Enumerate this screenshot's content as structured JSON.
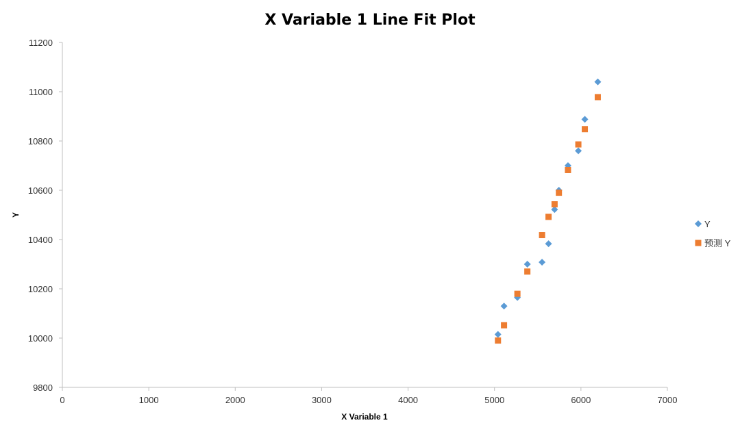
{
  "chart_data": {
    "type": "scatter",
    "title": "X Variable 1 Line Fit  Plot",
    "xlabel": "X Variable 1",
    "ylabel": "Y",
    "xlim": [
      0,
      7000
    ],
    "ylim": [
      9800,
      11200
    ],
    "xticks": [
      0,
      1000,
      2000,
      3000,
      4000,
      5000,
      6000,
      7000
    ],
    "yticks": [
      9800,
      10000,
      10200,
      10400,
      10600,
      10800,
      11000,
      11200
    ],
    "grid": false,
    "legend_position": "right",
    "series": [
      {
        "name": "Y",
        "marker": "diamond",
        "color": "#5B9BD5",
        "points": [
          [
            5040,
            10015
          ],
          [
            5110,
            10130
          ],
          [
            5265,
            10165
          ],
          [
            5380,
            10300
          ],
          [
            5550,
            10308
          ],
          [
            5625,
            10383
          ],
          [
            5695,
            10522
          ],
          [
            5745,
            10600
          ],
          [
            5850,
            10700
          ],
          [
            5970,
            10760
          ],
          [
            6045,
            10888
          ],
          [
            6195,
            11040
          ]
        ]
      },
      {
        "name": "预测 Y",
        "marker": "square",
        "color": "#ED7D31",
        "points": [
          [
            5040,
            9990
          ],
          [
            5110,
            10052
          ],
          [
            5265,
            10180
          ],
          [
            5380,
            10270
          ],
          [
            5550,
            10418
          ],
          [
            5625,
            10492
          ],
          [
            5695,
            10543
          ],
          [
            5745,
            10590
          ],
          [
            5850,
            10682
          ],
          [
            5970,
            10786
          ],
          [
            6045,
            10848
          ],
          [
            6195,
            10978
          ]
        ]
      }
    ]
  }
}
